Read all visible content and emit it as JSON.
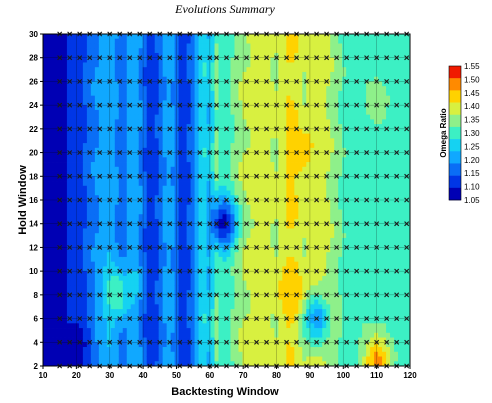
{
  "chart_data": {
    "type": "heatmap",
    "title": "Evolutions Summary",
    "xlabel": "Backtesting Window",
    "ylabel": "Hold Window",
    "xlim": [
      10,
      120
    ],
    "ylim": [
      2,
      30
    ],
    "x_ticks": [
      "10",
      "20",
      "30",
      "40",
      "50",
      "60",
      "70",
      "80",
      "90",
      "100",
      "110",
      "120"
    ],
    "y_ticks": [
      "2",
      "4",
      "6",
      "8",
      "10",
      "12",
      "14",
      "16",
      "18",
      "20",
      "22",
      "24",
      "26",
      "28",
      "30"
    ],
    "grid": true,
    "colorbar": {
      "title": "Omega Ratio",
      "position": "right",
      "levels": [
        1.05,
        1.1,
        1.15,
        1.2,
        1.25,
        1.3,
        1.35,
        1.4,
        1.45,
        1.5,
        1.55
      ],
      "tick_labels": [
        "1.55",
        "1.50",
        "1.45",
        "1.40",
        "1.35",
        "1.30",
        "1.25",
        "1.20",
        "1.15",
        "1.10",
        "1.05"
      ],
      "colors": [
        "#0000b4",
        "#0036e6",
        "#0a6ef6",
        "#10a8ff",
        "#15d2f2",
        "#3cf0c4",
        "#8ef08a",
        "#d8f040",
        "#ffd200",
        "#ff8a00",
        "#f01a00"
      ]
    },
    "marker_x": [
      15,
      18,
      21,
      24,
      27,
      30,
      33,
      36,
      39,
      42,
      45,
      48,
      51,
      54,
      57,
      60,
      62,
      65,
      68,
      71,
      74,
      77,
      80,
      83,
      86,
      89,
      92,
      95,
      98,
      101,
      104,
      107,
      110,
      113,
      116,
      119
    ],
    "marker_y": [
      2,
      4,
      6,
      8,
      10,
      12,
      14,
      16,
      18,
      20,
      22,
      24,
      26,
      28,
      30
    ],
    "column_profile": {
      "x": [
        10,
        14,
        16,
        18,
        20,
        22,
        24,
        26,
        28,
        30,
        32,
        34,
        36,
        38,
        40,
        42,
        44,
        46,
        48,
        50,
        52,
        54,
        56,
        58,
        60,
        62,
        64,
        66,
        68,
        70,
        72,
        74,
        76,
        78,
        80,
        82,
        84,
        86,
        88,
        90,
        92,
        94,
        96,
        98,
        100,
        102,
        104,
        106,
        108,
        110,
        112,
        114,
        116,
        118,
        120
      ],
      "omega": [
        1.05,
        1.05,
        1.07,
        1.12,
        1.12,
        1.14,
        1.18,
        1.2,
        1.22,
        1.24,
        1.2,
        1.17,
        1.22,
        1.24,
        1.17,
        1.12,
        1.14,
        1.2,
        1.23,
        1.18,
        1.1,
        1.16,
        1.22,
        1.3,
        1.25,
        1.36,
        1.32,
        1.34,
        1.38,
        1.4,
        1.41,
        1.42,
        1.42,
        1.41,
        1.4,
        1.43,
        1.46,
        1.44,
        1.4,
        1.42,
        1.43,
        1.42,
        1.4,
        1.37,
        1.34,
        1.33,
        1.32,
        1.33,
        1.33,
        1.33,
        1.33,
        1.32,
        1.32,
        1.32,
        1.32
      ]
    },
    "features": [
      {
        "x": 32,
        "y": 8,
        "omega": 1.35
      },
      {
        "x": 20,
        "y": 4,
        "omega": 1.07
      },
      {
        "x": 85,
        "y": 8,
        "omega": 1.5
      },
      {
        "x": 87,
        "y": 20,
        "omega": 1.48
      },
      {
        "x": 92,
        "y": 6,
        "omega": 1.22
      },
      {
        "x": 64,
        "y": 14,
        "omega": 1.08
      },
      {
        "x": 110,
        "y": 2.3,
        "omega": 1.52
      },
      {
        "x": 110,
        "y": 14,
        "omega": 1.31
      },
      {
        "x": 110,
        "y": 24,
        "omega": 1.37
      }
    ]
  }
}
